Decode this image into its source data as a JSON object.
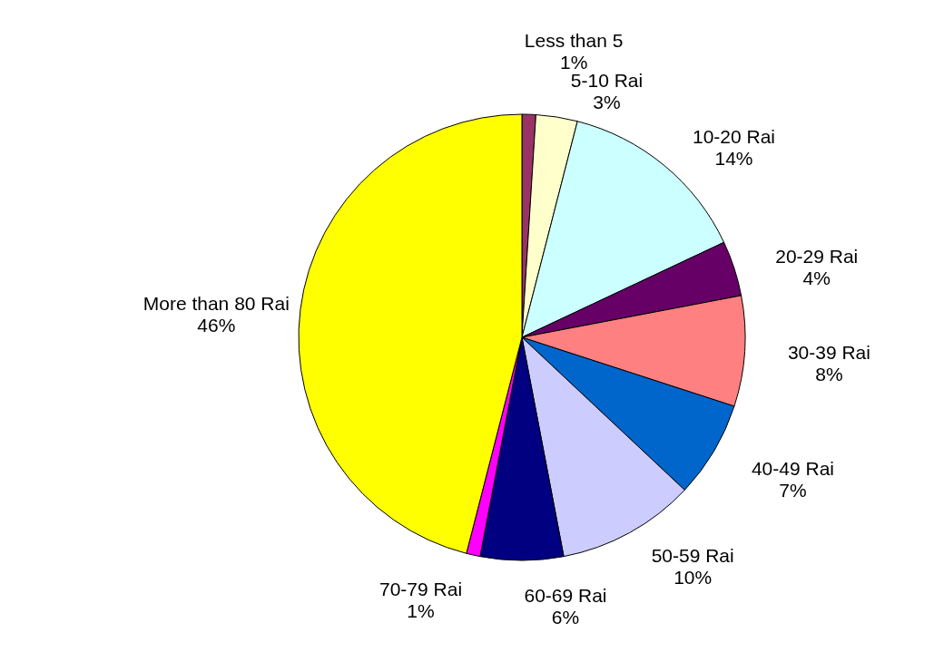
{
  "chart_data": {
    "type": "pie",
    "categories": [
      "Less than 5",
      "5-10 Rai",
      "10-20 Rai",
      "20-29 Rai",
      "30-39 Rai",
      "40-49 Rai",
      "50-59 Rai",
      "60-69 Rai",
      "70-79 Rai",
      "More than 80 Rai"
    ],
    "values": [
      1,
      3,
      14,
      4,
      8,
      7,
      10,
      6,
      1,
      46
    ],
    "value_labels": [
      "1%",
      "3%",
      "14%",
      "4%",
      "8%",
      "7%",
      "10%",
      "6%",
      "1%",
      "46%"
    ],
    "colors": [
      "#993366",
      "#ffffcc",
      "#ccffff",
      "#660066",
      "#ff8080",
      "#0066cc",
      "#ccccff",
      "#000080",
      "#ff00ff",
      "#ffff00"
    ]
  }
}
